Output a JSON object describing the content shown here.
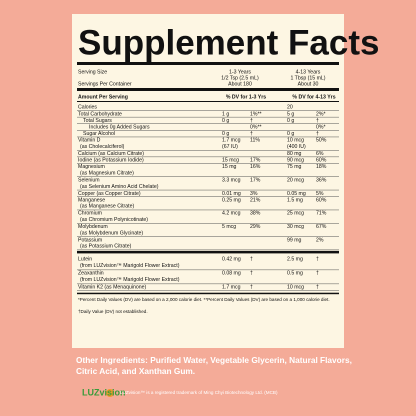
{
  "label": {
    "title": "Supplement Facts",
    "serving_size_label": "Serving Size",
    "servings_label": "Servings Per Container",
    "columns": [
      {
        "age": "1-3 Years",
        "serving": "1/2 Tsp (2.5 mL)",
        "servings": "About 180",
        "dv_header": "% DV for 1-3 Yrs"
      },
      {
        "age": "4-13 Years",
        "serving": "1 Tbsp (15 mL)",
        "servings": "About 30",
        "dv_header": "% DV for 4-13 Yrs"
      }
    ],
    "amount_header": "Amount Per Serving",
    "rows": [
      {
        "name": "Calories",
        "amounts": [
          null,
          "20"
        ],
        "dvs": [
          null,
          null
        ]
      },
      {
        "name": "Total Carbohydrate",
        "amounts": [
          "1 g",
          "5 g"
        ],
        "dvs": [
          "1%**",
          "2%*"
        ]
      },
      {
        "name": "Total Sugars",
        "amounts": [
          "0 g",
          "0 g"
        ],
        "dvs": [
          "†",
          "†"
        ]
      },
      {
        "name": "Includes 0g Added Sugars",
        "amounts": [
          null,
          null
        ],
        "dvs": [
          "0%**",
          "0%*"
        ]
      },
      {
        "name": "Sugar Alcohol",
        "amounts": [
          "0 g",
          "0 g"
        ],
        "dvs": [
          "†",
          "†"
        ]
      },
      {
        "name": "Vitamin D",
        "sub": "(as Cholecalciferol)",
        "amounts": [
          "1.7 mcg",
          "10 mcg"
        ],
        "amount_subs": [
          "(67 IU)",
          "(400 IU)"
        ],
        "dvs": [
          "11%",
          "50%"
        ]
      },
      {
        "name": "Calcium (as Calcium Citrate)",
        "amounts": [
          null,
          "80 mg"
        ],
        "dvs": [
          null,
          "6%"
        ]
      },
      {
        "name": "Iodine (as Potassium Iodide)",
        "amounts": [
          "15 mcg",
          "90 mcg"
        ],
        "dvs": [
          "17%",
          "60%"
        ]
      },
      {
        "name": "Magnesium",
        "sub": "(as Magnesium Citrate)",
        "amounts": [
          "15 mg",
          "75 mg"
        ],
        "dvs": [
          "16%",
          "18%"
        ]
      },
      {
        "name": "Selenium",
        "sub": "(as Selenium Amino Acid Chelate)",
        "amounts": [
          "3.3 mcg",
          "20 mcg"
        ],
        "dvs": [
          "17%",
          "36%"
        ]
      },
      {
        "name": "Copper (as Copper Citrate)",
        "amounts": [
          "0.01 mg",
          "0.05 mg"
        ],
        "dvs": [
          "3%",
          "5%"
        ]
      },
      {
        "name": "Manganese",
        "sub": "(as Manganese Citrate)",
        "amounts": [
          "0.25 mg",
          "1.5 mg"
        ],
        "dvs": [
          "21%",
          "60%"
        ]
      },
      {
        "name": "Chromium",
        "sub": "(as Chromium Polynicotinate)",
        "amounts": [
          "4.2 mcg",
          "25 mcg"
        ],
        "dvs": [
          "38%",
          "71%"
        ]
      },
      {
        "name": "Molybdenum",
        "sub": "(as Molybdenum Glycinate)",
        "amounts": [
          "5 mcg",
          "30 mcg"
        ],
        "dvs": [
          "29%",
          "67%"
        ]
      },
      {
        "name": "Potassium",
        "sub": "(as Potassium Citrate)",
        "amounts": [
          null,
          "99 mg"
        ],
        "dvs": [
          null,
          "2%"
        ]
      }
    ],
    "rows2": [
      {
        "name": "Lutein",
        "sub": "(from LUZvision™ Marigold Flower Extract)",
        "amounts": [
          "0.42 mg",
          "2.5 mg"
        ],
        "dvs": [
          "†",
          "†"
        ]
      },
      {
        "name": "Zeaxanthin",
        "sub": "(from LUZvision™ Marigold Flower Extract)",
        "amounts": [
          "0.08 mg",
          "0.5 mg"
        ],
        "dvs": [
          "†",
          "†"
        ]
      },
      {
        "name": "Vitamin K2 (as Menaquinone)",
        "amounts": [
          "1.7 mcg",
          "10 mcg"
        ],
        "dvs": [
          "†",
          "†"
        ]
      }
    ],
    "footnotes": [
      "*Percent Daily Values (DV) are based on a 2,000 calorie diet. **Percent Daily Values (DV) are based on a 1,000 calorie diet.",
      "†Daily Value (DV) not established."
    ]
  },
  "other_ingredients": [
    "Other Ingredients: Purified Water, Vegetable Glycerin, Natural Flavors,",
    "Citric Acid, and Xanthan Gum."
  ],
  "logo": "LUZvision",
  "trademark": "LUZvision™ is a registered trademark of Ming Chyi Biotechnology Ltd. (MCB)"
}
